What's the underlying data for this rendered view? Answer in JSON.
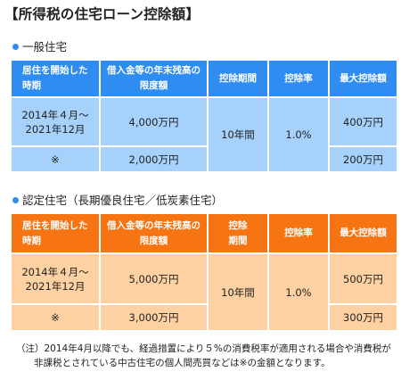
{
  "title": "【所得税の住宅ローン控除額】",
  "colors": {
    "general_blue": "#2f8cf0",
    "general_light": "#a6d1fb",
    "certified_orange": "#f77412",
    "certified_light": "#fdd1a2"
  },
  "general": {
    "label": "一般住宅",
    "headers": {
      "period_line1": "居住を開始した",
      "period_line2": "時期",
      "limit_line1": "借入金等の年末残高の",
      "limit_line2": "限度額",
      "term": "控除期間",
      "rate": "控除率",
      "max": "最大控除額"
    },
    "rows": [
      {
        "period_line1": "2014年４月～",
        "period_line2": "2021年12月",
        "limit": "4,000万円",
        "term": "10年間",
        "rate": "1.0%",
        "max": "400万円"
      },
      {
        "period": "※",
        "limit": "2,000万円",
        "max": "200万円"
      }
    ]
  },
  "certified": {
    "label": "認定住宅（長期優良住宅／低炭素住宅）",
    "headers": {
      "period_line1": "居住を開始した",
      "period_line2": "時期",
      "limit_line1": "借入金等の年末残高の",
      "limit_line2": "限度額",
      "term_line1": "控除",
      "term_line2": "期間",
      "rate": "控除率",
      "max": "最大控除額"
    },
    "rows": [
      {
        "period_line1": "2014年４月～",
        "period_line2": "2021年12月",
        "limit": "5,000万円",
        "term": "10年間",
        "rate": "1.0%",
        "max": "500万円"
      },
      {
        "period": "※",
        "limit": "3,000万円",
        "max": "300万円"
      }
    ]
  },
  "note": {
    "line1": "（注）2014年4月以降でも、経過措置により５%の消費税率が適用される場合や消費税が",
    "line2": "非課税とされている中古住宅の個人間売買などは※の金額となります。"
  }
}
